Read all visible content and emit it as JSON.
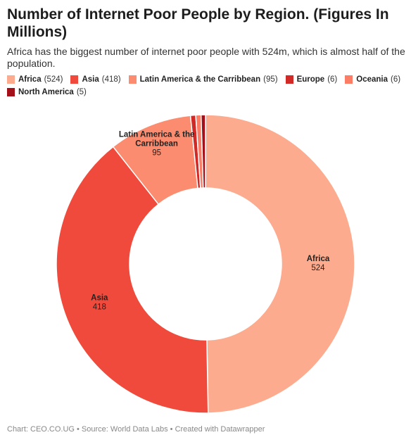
{
  "title": "Number of Internet Poor People by Region. (Figures In Millions)",
  "subtitle": "Africa has the biggest number of internet poor people with 524m, which is almost half of the population.",
  "footer": "Chart: CEO.CO.UG • Source: World Data Labs • Created with Datawrapper",
  "chart_data": {
    "type": "pie",
    "variant": "donut",
    "categories": [
      "Africa",
      "Asia",
      "Latin America & the Carribbean",
      "Europe",
      "Oceania",
      "North America"
    ],
    "values": [
      524,
      418,
      95,
      6,
      6,
      5
    ],
    "colors": [
      "#fcab8e",
      "#ef4a3b",
      "#fb8c6f",
      "#d12a26",
      "#fc7d65",
      "#a4101a"
    ],
    "legend_text": [
      "(524)",
      "(418)",
      "(95)",
      "(6)",
      "(6)",
      "(5)"
    ],
    "slice_labels": [
      {
        "name": [
          "Africa"
        ],
        "value": "524"
      },
      {
        "name": [
          "Asia"
        ],
        "value": "418"
      },
      {
        "name": [
          "Latin America & the",
          "Carribbean"
        ],
        "value": "95"
      }
    ],
    "legend_position": "top-left"
  }
}
